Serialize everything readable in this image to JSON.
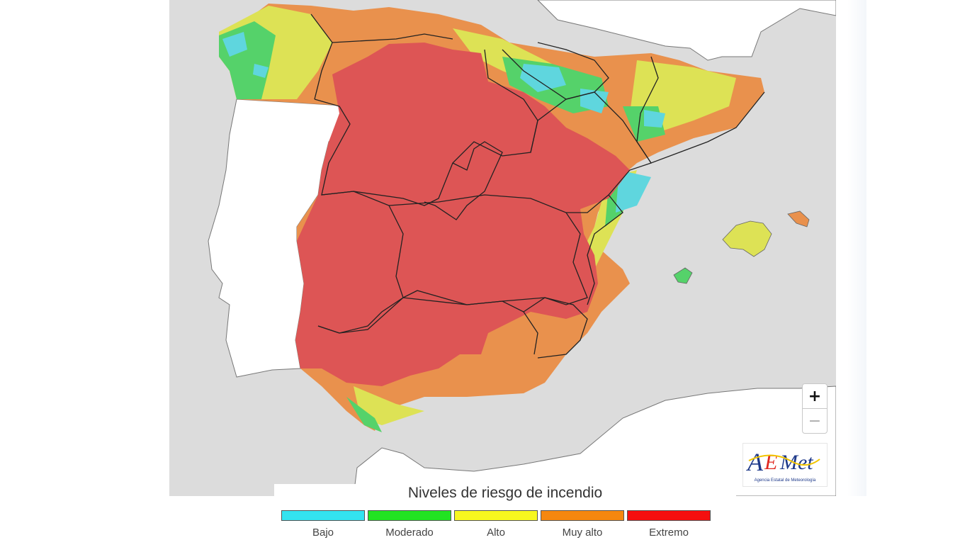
{
  "legend": {
    "title": "Niveles de riesgo de incendio",
    "levels": [
      {
        "label": "Bajo",
        "color": "#33e3f0"
      },
      {
        "label": "Moderado",
        "color": "#22e322"
      },
      {
        "label": "Alto",
        "color": "#f7f71f"
      },
      {
        "label": "Muy alto",
        "color": "#f5870f"
      },
      {
        "label": "Extremo",
        "color": "#f50f0f"
      }
    ]
  },
  "map_colors": {
    "land": "#ffffff",
    "sea": "#dcdcdc",
    "extremo": "#dd5555",
    "muy_alto": "#e9914d",
    "alto": "#dde255",
    "moderado": "#55d26a",
    "bajo": "#5fd6de"
  },
  "zoom": {
    "in": "+",
    "out": "−"
  },
  "logo": {
    "name": "AEMet",
    "subtitle": "Agencia Estatal de Meteorología"
  }
}
